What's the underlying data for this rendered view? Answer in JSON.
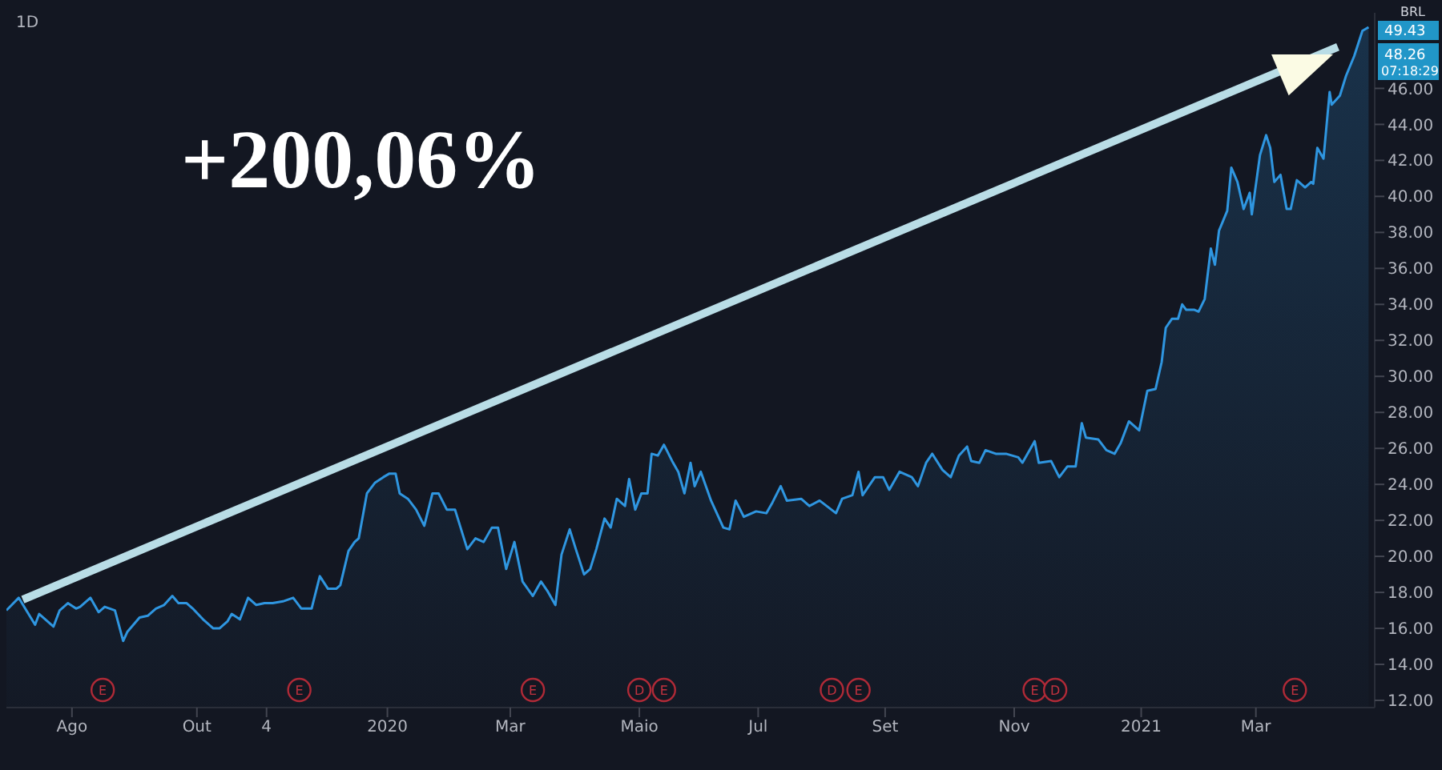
{
  "chart_data": {
    "type": "area",
    "title": "1D",
    "annotations": [
      "+200,06%",
      "BRL",
      "49.43",
      "48.26",
      "07:18:29",
      {
        "text": "E",
        "x": "2019-08-16"
      },
      {
        "text": "E",
        "x": "2019-11-20"
      },
      {
        "text": "E",
        "x": "2020-03-13"
      },
      {
        "text": "D",
        "x": "2020-05-04"
      },
      {
        "text": "E",
        "x": "2020-05-16"
      },
      {
        "text": "D",
        "x": "2020-08-06"
      },
      {
        "text": "E",
        "x": "2020-08-19"
      },
      {
        "text": "E",
        "x": "2020-11-13"
      },
      {
        "text": "D",
        "x": "2020-11-23"
      },
      {
        "text": "E",
        "x": "2021-03-20"
      }
    ],
    "x": [
      "2019-06-30",
      "2019-07-06",
      "2019-07-14",
      "2019-07-16",
      "2019-07-23",
      "2019-07-26",
      "2019-07-30",
      "2019-08-03",
      "2019-08-05",
      "2019-08-10",
      "2019-08-14",
      "2019-08-17",
      "2019-08-22",
      "2019-08-26",
      "2019-08-28",
      "2019-09-03",
      "2019-09-07",
      "2019-09-11",
      "2019-09-15",
      "2019-09-19",
      "2019-09-22",
      "2019-09-26",
      "2019-09-29",
      "2019-10-04",
      "2019-10-09",
      "2019-10-12",
      "2019-10-16",
      "2019-10-18",
      "2019-10-22",
      "2019-10-26",
      "2019-10-30",
      "2019-11-03",
      "2019-11-07",
      "2019-11-12",
      "2019-11-17",
      "2019-11-21",
      "2019-11-26",
      "2019-11-30",
      "2019-12-04",
      "2019-12-08",
      "2019-12-10",
      "2019-12-14",
      "2019-12-17",
      "2019-12-19",
      "2019-12-23",
      "2019-12-27",
      "2019-12-31",
      "2020-01-03",
      "2020-01-06",
      "2020-01-08",
      "2020-01-12",
      "2020-01-16",
      "2020-01-20",
      "2020-01-24",
      "2020-01-27",
      "2020-01-31",
      "2020-02-04",
      "2020-02-10",
      "2020-02-14",
      "2020-02-18",
      "2020-02-22",
      "2020-02-25",
      "2020-02-29",
      "2020-03-04",
      "2020-03-08",
      "2020-03-13",
      "2020-03-17",
      "2020-03-20",
      "2020-03-24",
      "2020-03-27",
      "2020-03-31",
      "2020-04-03",
      "2020-04-07",
      "2020-04-10",
      "2020-04-13",
      "2020-04-17",
      "2020-04-20",
      "2020-04-23",
      "2020-04-27",
      "2020-04-29",
      "2020-05-02",
      "2020-05-05",
      "2020-05-08",
      "2020-05-10",
      "2020-05-13",
      "2020-05-16",
      "2020-05-20",
      "2020-05-23",
      "2020-05-26",
      "2020-05-29",
      "2020-05-31",
      "2020-06-03",
      "2020-06-08",
      "2020-06-14",
      "2020-06-17",
      "2020-06-20",
      "2020-06-24",
      "2020-06-30",
      "2020-07-05",
      "2020-07-08",
      "2020-07-12",
      "2020-07-15",
      "2020-07-22",
      "2020-07-26",
      "2020-07-31",
      "2020-08-08",
      "2020-08-11",
      "2020-08-16",
      "2020-08-19",
      "2020-08-21",
      "2020-08-27",
      "2020-08-31",
      "2020-09-03",
      "2020-09-08",
      "2020-09-14",
      "2020-09-17",
      "2020-09-21",
      "2020-09-24",
      "2020-09-29",
      "2020-10-03",
      "2020-10-07",
      "2020-10-11",
      "2020-10-13",
      "2020-10-17",
      "2020-10-20",
      "2020-10-25",
      "2020-10-30",
      "2020-11-05",
      "2020-11-07",
      "2020-11-13",
      "2020-11-15",
      "2020-11-21",
      "2020-11-25",
      "2020-11-29",
      "2020-12-03",
      "2020-12-06",
      "2020-12-08",
      "2020-12-14",
      "2020-12-18",
      "2020-12-22",
      "2020-12-25",
      "2020-12-29",
      "2021-01-03",
      "2021-01-07",
      "2021-01-11",
      "2021-01-14",
      "2021-01-16",
      "2021-01-19",
      "2021-01-22",
      "2021-01-24",
      "2021-01-26",
      "2021-01-30",
      "2021-02-01",
      "2021-02-04",
      "2021-02-07",
      "2021-02-09",
      "2021-02-11",
      "2021-02-15",
      "2021-02-17",
      "2021-02-20",
      "2021-02-23",
      "2021-02-26",
      "2021-02-27",
      "2021-03-03",
      "2021-03-06",
      "2021-03-08",
      "2021-03-10",
      "2021-03-13",
      "2021-03-16",
      "2021-03-18",
      "2021-03-21",
      "2021-03-25",
      "2021-03-28",
      "2021-03-29",
      "2021-03-31",
      "2021-04-03",
      "2021-04-06",
      "2021-04-07",
      "2021-04-11",
      "2021-04-14",
      "2021-04-18",
      "2021-04-22",
      "2021-04-25"
    ],
    "series": [
      {
        "color": "#2f96e0",
        "values": [
          17.0,
          17.7,
          16.2,
          16.8,
          16.1,
          17.0,
          17.4,
          17.1,
          17.2,
          17.7,
          16.9,
          17.2,
          17.0,
          15.3,
          15.8,
          16.6,
          16.7,
          17.1,
          17.3,
          17.8,
          17.4,
          17.4,
          17.1,
          16.5,
          16.0,
          16.0,
          16.4,
          16.8,
          16.5,
          17.7,
          17.3,
          17.4,
          17.4,
          17.5,
          17.7,
          17.1,
          17.1,
          18.9,
          18.2,
          18.2,
          18.4,
          20.3,
          20.8,
          21.0,
          23.5,
          24.1,
          24.4,
          24.6,
          24.6,
          23.5,
          23.2,
          22.6,
          21.7,
          23.5,
          23.5,
          22.6,
          22.6,
          20.4,
          21.0,
          20.8,
          21.6,
          21.6,
          19.3,
          20.8,
          18.6,
          17.8,
          18.6,
          18.1,
          17.3,
          20.1,
          21.5,
          20.4,
          19.0,
          19.3,
          20.4,
          22.1,
          21.6,
          23.2,
          22.8,
          24.3,
          22.6,
          23.5,
          23.5,
          25.7,
          25.6,
          26.2,
          25.3,
          24.7,
          23.5,
          25.2,
          23.9,
          24.7,
          23.1,
          21.6,
          21.5,
          23.1,
          22.2,
          22.5,
          22.4,
          23.0,
          23.9,
          23.1,
          23.2,
          22.8,
          23.1,
          22.4,
          23.2,
          23.4,
          24.7,
          23.4,
          24.4,
          24.4,
          23.7,
          24.7,
          24.4,
          23.9,
          25.2,
          25.7,
          24.8,
          24.4,
          25.6,
          26.1,
          25.3,
          25.2,
          25.9,
          25.7,
          25.7,
          25.5,
          25.2,
          26.4,
          25.2,
          25.3,
          24.4,
          25.0,
          25.0,
          27.4,
          26.6,
          26.5,
          25.9,
          25.7,
          26.3,
          27.5,
          27.0,
          29.2,
          29.3,
          30.8,
          32.7,
          33.2,
          33.2,
          34.0,
          33.7,
          33.7,
          33.6,
          34.3,
          37.1,
          36.2,
          38.1,
          39.2,
          41.6,
          40.8,
          39.3,
          40.2,
          39.0,
          42.3,
          43.4,
          42.7,
          40.8,
          41.2,
          39.3,
          39.3,
          40.9,
          40.5,
          40.8,
          40.7,
          42.7,
          42.1,
          45.8,
          45.1,
          45.6,
          46.7,
          47.8,
          49.2,
          49.4
        ]
      },
      {
        "type": "line",
        "color": "#b9dde6",
        "x": [
          "2019-07-08",
          "2021-04-10"
        ],
        "values": [
          17.6,
          48.3
        ]
      }
    ],
    "xlim": [
      "2019-06-30",
      "2021-04-28"
    ],
    "xticks": [
      {
        "value": "2019-08-01",
        "label": "Ago"
      },
      {
        "value": "2019-10-01",
        "label": "Out"
      },
      {
        "value": "2019-11-04",
        "label": "4"
      },
      {
        "value": "2020-01-02",
        "label": "2020"
      },
      {
        "value": "2020-03-02",
        "label": "Mar"
      },
      {
        "value": "2020-05-04",
        "label": "Maio"
      },
      {
        "value": "2020-07-01",
        "label": "Jul"
      },
      {
        "value": "2020-09-01",
        "label": "Set"
      },
      {
        "value": "2020-11-03",
        "label": "Nov"
      },
      {
        "value": "2021-01-04",
        "label": "2021"
      },
      {
        "value": "2021-03-01",
        "label": "Mar"
      }
    ],
    "ylim": [
      11.6,
      50.2
    ],
    "yticks": [
      {
        "value": 12,
        "label": "12.00"
      },
      {
        "value": 14,
        "label": "14.00"
      },
      {
        "value": 16,
        "label": "16.00"
      },
      {
        "value": 18,
        "label": "18.00"
      },
      {
        "value": 20,
        "label": "20.00"
      },
      {
        "value": 22,
        "label": "22.00"
      },
      {
        "value": 24,
        "label": "24.00"
      },
      {
        "value": 26,
        "label": "26.00"
      },
      {
        "value": 28,
        "label": "28.00"
      },
      {
        "value": 30,
        "label": "30.00"
      },
      {
        "value": 32,
        "label": "32.00"
      },
      {
        "value": 34,
        "label": "34.00"
      },
      {
        "value": 36,
        "label": "36.00"
      },
      {
        "value": 38,
        "label": "38.00"
      },
      {
        "value": 40,
        "label": "40.00"
      },
      {
        "value": 42,
        "label": "42.00"
      },
      {
        "value": 44,
        "label": "44.00"
      },
      {
        "value": 46,
        "label": "46.00"
      }
    ],
    "legend": false
  }
}
